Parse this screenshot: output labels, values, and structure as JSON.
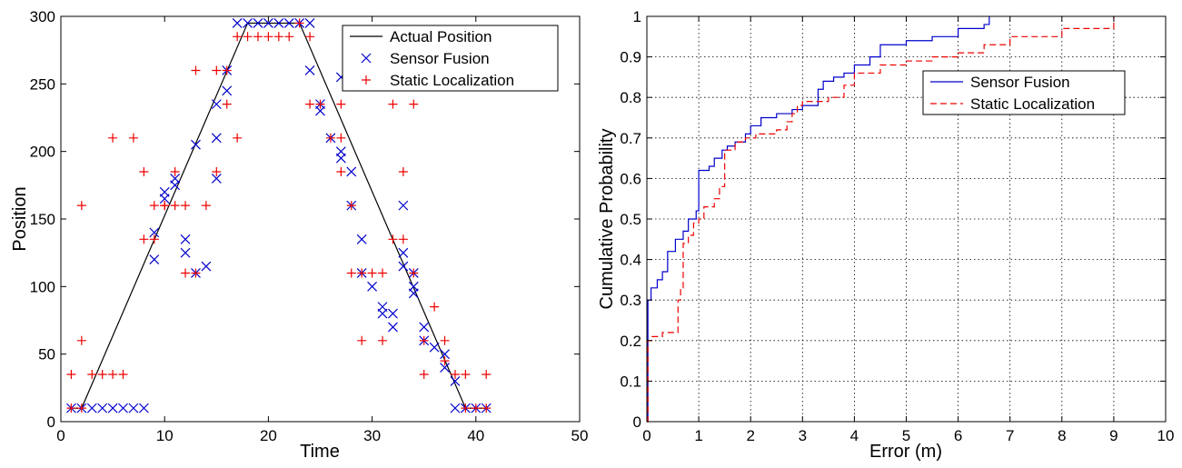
{
  "chart_data": [
    {
      "type": "scatter",
      "title": "",
      "xlabel": "Time",
      "ylabel": "Position",
      "xlim": [
        0,
        50
      ],
      "ylim": [
        0,
        300
      ],
      "xticks": [
        0,
        10,
        20,
        30,
        40,
        50
      ],
      "yticks": [
        0,
        50,
        100,
        150,
        200,
        250,
        300
      ],
      "grid": false,
      "legend_position": "top-right",
      "series": [
        {
          "name": "Actual Position",
          "style": "line",
          "color": "#000000",
          "points": [
            [
              1,
              10
            ],
            [
              2,
              10
            ],
            [
              18,
              295
            ],
            [
              23,
              295
            ],
            [
              39,
              10
            ],
            [
              41,
              10
            ]
          ]
        },
        {
          "name": "Sensor Fusion",
          "style": "x-marker",
          "color": "#0000cc",
          "points": [
            [
              1,
              10
            ],
            [
              2,
              10
            ],
            [
              3,
              10
            ],
            [
              4,
              10
            ],
            [
              5,
              10
            ],
            [
              6,
              10
            ],
            [
              7,
              10
            ],
            [
              8,
              10
            ],
            [
              9,
              120
            ],
            [
              9,
              140
            ],
            [
              10,
              165
            ],
            [
              10,
              170
            ],
            [
              11,
              175
            ],
            [
              11,
              180
            ],
            [
              12,
              135
            ],
            [
              12,
              125
            ],
            [
              13,
              110
            ],
            [
              13,
              205
            ],
            [
              14,
              115
            ],
            [
              15,
              180
            ],
            [
              15,
              210
            ],
            [
              15,
              235
            ],
            [
              16,
              245
            ],
            [
              16,
              260
            ],
            [
              17,
              295
            ],
            [
              18,
              295
            ],
            [
              19,
              295
            ],
            [
              20,
              295
            ],
            [
              21,
              295
            ],
            [
              22,
              295
            ],
            [
              23,
              295
            ],
            [
              24,
              295
            ],
            [
              24,
              260
            ],
            [
              25,
              235
            ],
            [
              25,
              230
            ],
            [
              26,
              210
            ],
            [
              27,
              255
            ],
            [
              27,
              200
            ],
            [
              27,
              195
            ],
            [
              28,
              185
            ],
            [
              28,
              160
            ],
            [
              29,
              135
            ],
            [
              29,
              110
            ],
            [
              30,
              100
            ],
            [
              31,
              85
            ],
            [
              31,
              80
            ],
            [
              32,
              80
            ],
            [
              32,
              70
            ],
            [
              33,
              160
            ],
            [
              33,
              125
            ],
            [
              33,
              115
            ],
            [
              34,
              110
            ],
            [
              34,
              100
            ],
            [
              34,
              95
            ],
            [
              35,
              70
            ],
            [
              35,
              60
            ],
            [
              36,
              55
            ],
            [
              37,
              50
            ],
            [
              37,
              40
            ],
            [
              38,
              30
            ],
            [
              38,
              10
            ],
            [
              39,
              10
            ],
            [
              40,
              10
            ],
            [
              41,
              10
            ]
          ]
        },
        {
          "name": "Static Localization",
          "style": "plus-marker",
          "color": "#ee0000",
          "points": [
            [
              1,
              35
            ],
            [
              1,
              10
            ],
            [
              2,
              160
            ],
            [
              2,
              60
            ],
            [
              2,
              10
            ],
            [
              3,
              35
            ],
            [
              4,
              35
            ],
            [
              5,
              35
            ],
            [
              5,
              210
            ],
            [
              6,
              35
            ],
            [
              7,
              210
            ],
            [
              8,
              185
            ],
            [
              8,
              135
            ],
            [
              9,
              135
            ],
            [
              9,
              160
            ],
            [
              10,
              160
            ],
            [
              10,
              160
            ],
            [
              11,
              185
            ],
            [
              11,
              160
            ],
            [
              12,
              160
            ],
            [
              12,
              110
            ],
            [
              13,
              260
            ],
            [
              13,
              110
            ],
            [
              14,
              160
            ],
            [
              15,
              260
            ],
            [
              15,
              185
            ],
            [
              16,
              260
            ],
            [
              16,
              235
            ],
            [
              17,
              210
            ],
            [
              17,
              285
            ],
            [
              18,
              285
            ],
            [
              19,
              285
            ],
            [
              20,
              285
            ],
            [
              21,
              285
            ],
            [
              22,
              285
            ],
            [
              23,
              295
            ],
            [
              24,
              285
            ],
            [
              24,
              235
            ],
            [
              25,
              235
            ],
            [
              26,
              210
            ],
            [
              27,
              235
            ],
            [
              27,
              210
            ],
            [
              27,
              185
            ],
            [
              28,
              160
            ],
            [
              28,
              110
            ],
            [
              29,
              110
            ],
            [
              29,
              60
            ],
            [
              30,
              110
            ],
            [
              31,
              110
            ],
            [
              31,
              60
            ],
            [
              32,
              235
            ],
            [
              32,
              135
            ],
            [
              33,
              185
            ],
            [
              33,
              135
            ],
            [
              34,
              235
            ],
            [
              34,
              110
            ],
            [
              35,
              60
            ],
            [
              35,
              35
            ],
            [
              36,
              85
            ],
            [
              37,
              60
            ],
            [
              37,
              45
            ],
            [
              38,
              35
            ],
            [
              39,
              35
            ],
            [
              39,
              10
            ],
            [
              40,
              10
            ],
            [
              41,
              35
            ],
            [
              41,
              10
            ]
          ]
        }
      ]
    },
    {
      "type": "line",
      "title": "",
      "xlabel": "Error (m)",
      "ylabel": "Cumulative Probability",
      "xlim": [
        0,
        10
      ],
      "ylim": [
        0,
        1
      ],
      "xticks": [
        0,
        1,
        2,
        3,
        4,
        5,
        6,
        7,
        8,
        9,
        10
      ],
      "yticks": [
        0,
        0.1,
        0.2,
        0.3,
        0.4,
        0.5,
        0.6,
        0.7,
        0.8,
        0.9,
        1
      ],
      "grid": true,
      "legend_position": "upper-middle-right",
      "series": [
        {
          "name": "Sensor Fusion",
          "style": "step",
          "dash": "solid",
          "color": "#0000cc",
          "points": [
            [
              0,
              0
            ],
            [
              0.02,
              0.3
            ],
            [
              0.08,
              0.33
            ],
            [
              0.2,
              0.35
            ],
            [
              0.3,
              0.37
            ],
            [
              0.4,
              0.42
            ],
            [
              0.55,
              0.45
            ],
            [
              0.7,
              0.47
            ],
            [
              0.8,
              0.5
            ],
            [
              0.95,
              0.52
            ],
            [
              1.0,
              0.53
            ],
            [
              1.0,
              0.62
            ],
            [
              1.2,
              0.63
            ],
            [
              1.3,
              0.65
            ],
            [
              1.45,
              0.67
            ],
            [
              1.55,
              0.68
            ],
            [
              1.7,
              0.69
            ],
            [
              1.9,
              0.71
            ],
            [
              2.0,
              0.73
            ],
            [
              2.2,
              0.75
            ],
            [
              2.5,
              0.76
            ],
            [
              2.8,
              0.77
            ],
            [
              3.0,
              0.78
            ],
            [
              3.2,
              0.78
            ],
            [
              3.3,
              0.82
            ],
            [
              3.4,
              0.84
            ],
            [
              3.6,
              0.85
            ],
            [
              3.8,
              0.86
            ],
            [
              4.0,
              0.88
            ],
            [
              4.3,
              0.9
            ],
            [
              4.5,
              0.93
            ],
            [
              5.0,
              0.94
            ],
            [
              5.5,
              0.95
            ],
            [
              6.0,
              0.97
            ],
            [
              6.5,
              0.98
            ],
            [
              6.6,
              1.0
            ]
          ]
        },
        {
          "name": "Static Localization",
          "style": "step",
          "dash": "dashed",
          "color": "#ee0000",
          "points": [
            [
              0,
              0
            ],
            [
              0.02,
              0.2
            ],
            [
              0.1,
              0.21
            ],
            [
              0.3,
              0.22
            ],
            [
              0.5,
              0.22
            ],
            [
              0.6,
              0.3
            ],
            [
              0.65,
              0.33
            ],
            [
              0.7,
              0.44
            ],
            [
              0.8,
              0.46
            ],
            [
              0.9,
              0.49
            ],
            [
              1.0,
              0.5
            ],
            [
              1.1,
              0.53
            ],
            [
              1.3,
              0.55
            ],
            [
              1.4,
              0.58
            ],
            [
              1.5,
              0.58
            ],
            [
              1.5,
              0.67
            ],
            [
              1.7,
              0.69
            ],
            [
              1.9,
              0.7
            ],
            [
              2.1,
              0.71
            ],
            [
              2.5,
              0.72
            ],
            [
              2.7,
              0.74
            ],
            [
              2.8,
              0.76
            ],
            [
              2.9,
              0.78
            ],
            [
              3.0,
              0.79
            ],
            [
              3.5,
              0.8
            ],
            [
              3.8,
              0.83
            ],
            [
              4.0,
              0.86
            ],
            [
              4.5,
              0.88
            ],
            [
              5.0,
              0.89
            ],
            [
              5.5,
              0.9
            ],
            [
              6.0,
              0.91
            ],
            [
              6.5,
              0.93
            ],
            [
              7.0,
              0.95
            ],
            [
              8.0,
              0.97
            ],
            [
              9.0,
              1.0
            ]
          ]
        }
      ]
    }
  ]
}
